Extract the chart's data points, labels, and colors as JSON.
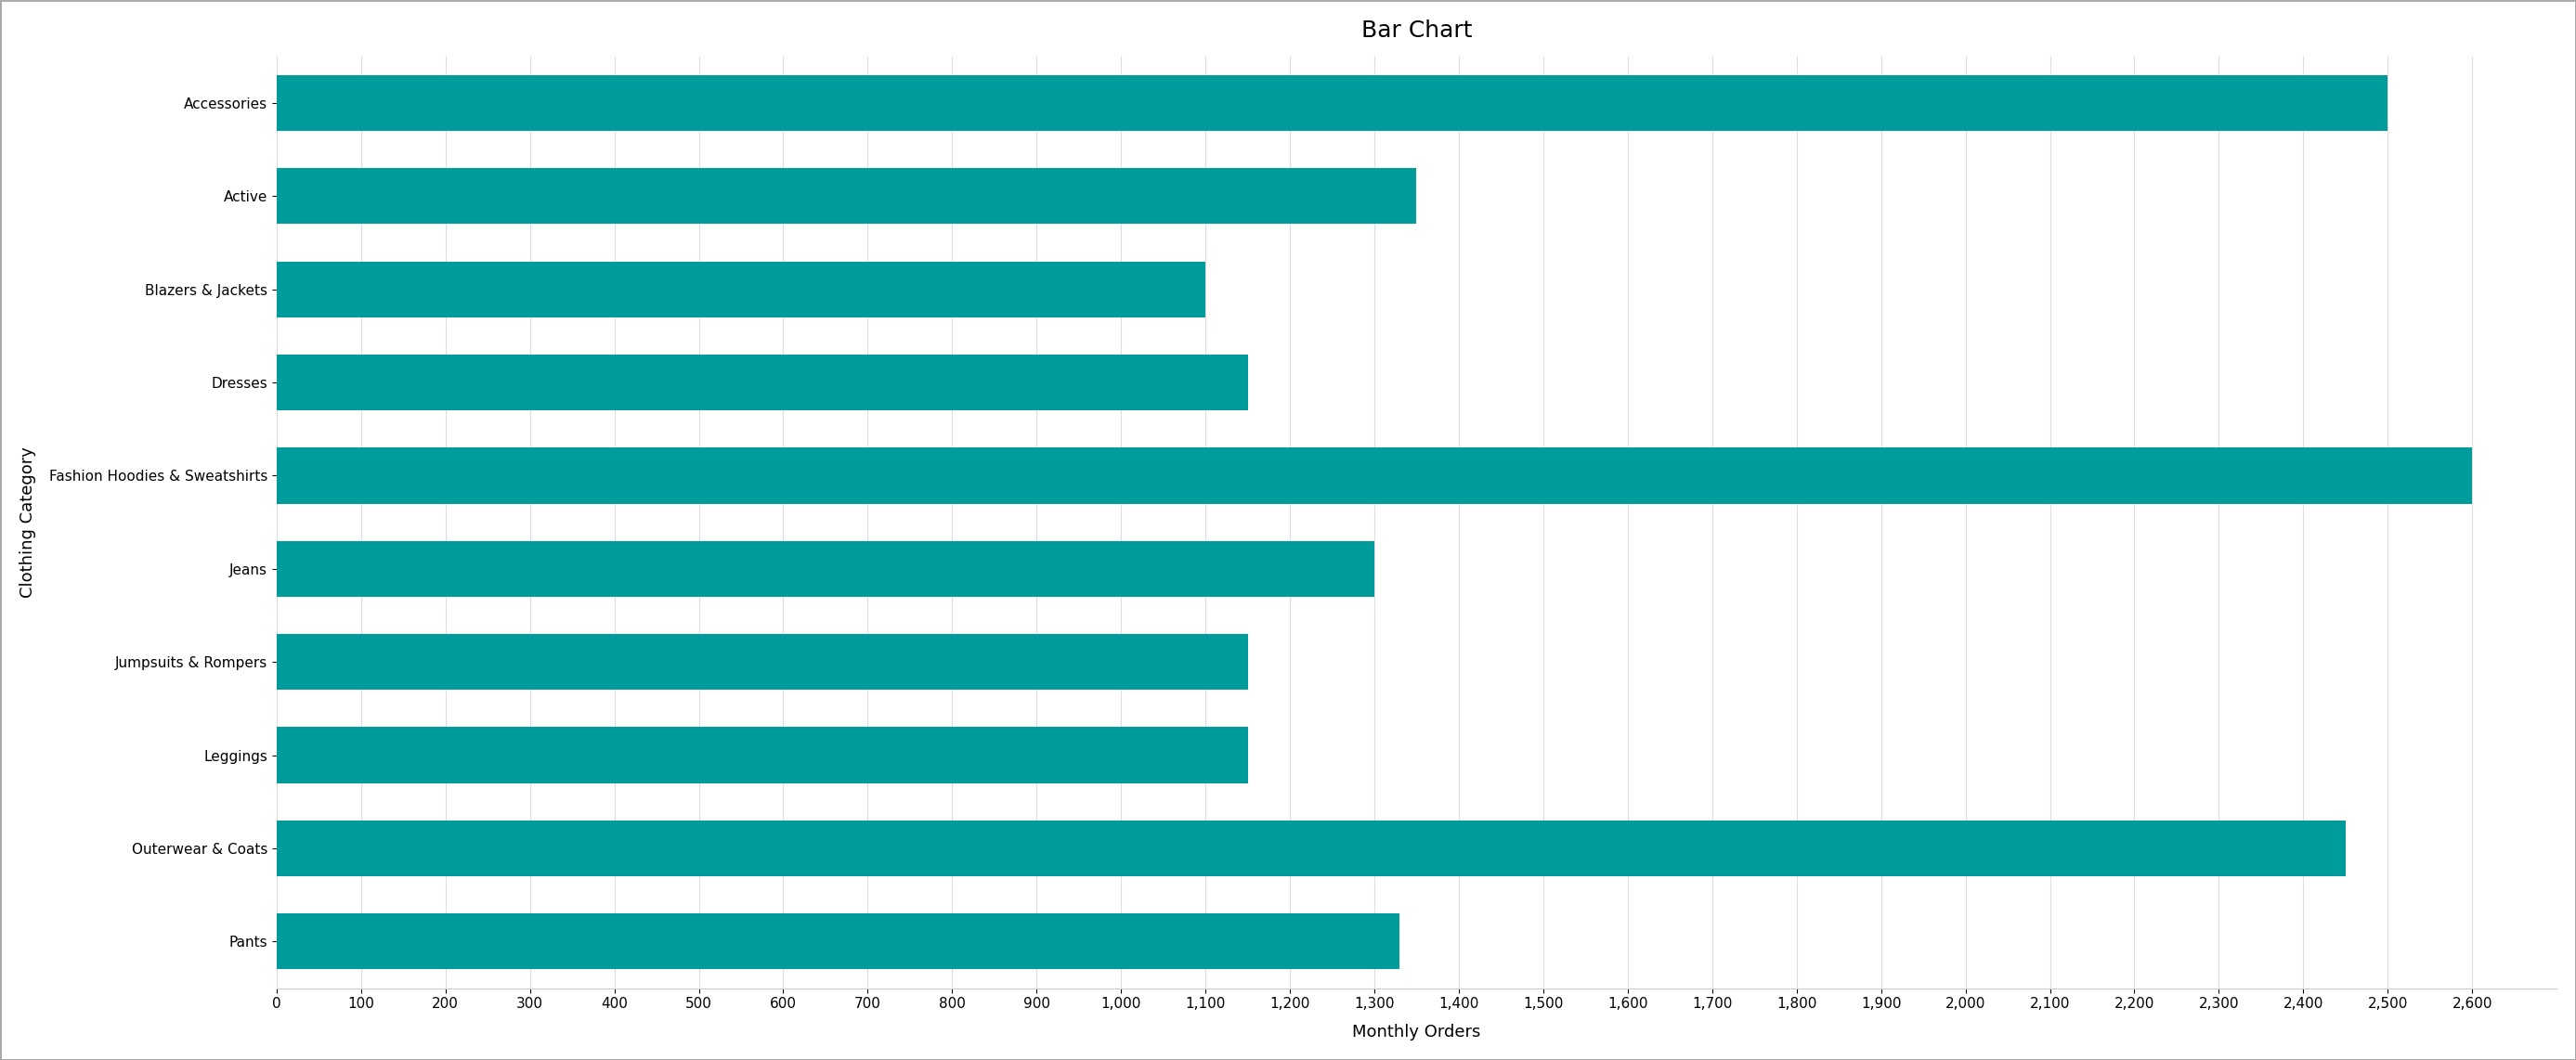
{
  "title": "Bar Chart",
  "xlabel": "Monthly Orders",
  "ylabel": "Clothing Category",
  "categories": [
    "Accessories",
    "Active",
    "Blazers & Jackets",
    "Dresses",
    "Fashion Hoodies & Sweatshirts",
    "Jeans",
    "Jumpsuits & Rompers",
    "Leggings",
    "Outerwear & Coats",
    "Pants"
  ],
  "values": [
    2500,
    1350,
    1100,
    1150,
    2600,
    1300,
    1150,
    1150,
    2450,
    1330
  ],
  "bar_color": "#009B9B",
  "background_color": "#FFFFFF",
  "plot_bg_color": "#F5F5F5",
  "xlim": [
    0,
    2700
  ],
  "xticks": [
    0,
    100,
    200,
    300,
    400,
    500,
    600,
    700,
    800,
    900,
    1000,
    1100,
    1200,
    1300,
    1400,
    1500,
    1600,
    1700,
    1800,
    1900,
    2000,
    2100,
    2200,
    2300,
    2400,
    2500,
    2600
  ],
  "grid_color": "#DDDDDD",
  "title_fontsize": 18,
  "axis_label_fontsize": 13,
  "tick_fontsize": 11,
  "bar_height": 0.6
}
